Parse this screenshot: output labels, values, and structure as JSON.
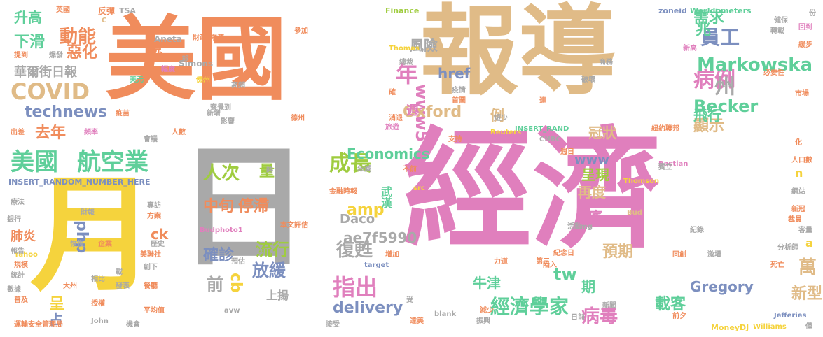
{
  "colors": {
    "orange": "#f08c5c",
    "tan": "#e0bb87",
    "pink": "#e07fbd",
    "yellow": "#f5d33d",
    "gray": "#a9a9a9",
    "blue": "#7c8fbf",
    "green": "#5fcf9a",
    "lime": "#9fcc3f",
    "background": "#ffffff"
  },
  "words": [
    {
      "text": "美國",
      "color": "orange",
      "weight": 100
    },
    {
      "text": "報導",
      "color": "tan",
      "weight": 95
    },
    {
      "text": "經濟",
      "color": "pink",
      "weight": 90
    },
    {
      "text": "月",
      "color": "yellow",
      "weight": 80
    },
    {
      "text": "日",
      "color": "gray",
      "weight": 80
    },
    {
      "text": "動能",
      "color": "orange",
      "weight": 20
    },
    {
      "text": "COVID",
      "color": "tan",
      "weight": 20
    },
    {
      "text": "technews",
      "color": "blue",
      "weight": 15
    },
    {
      "text": "美國",
      "color": "green",
      "weight": 18
    },
    {
      "text": "航空業",
      "color": "green",
      "weight": 18
    },
    {
      "text": "人次",
      "color": "lime",
      "weight": 16
    },
    {
      "text": "量",
      "color": "lime",
      "weight": 12
    },
    {
      "text": "中旬",
      "color": "orange",
      "weight": 12
    },
    {
      "text": "停滯",
      "color": "orange",
      "weight": 12
    },
    {
      "text": "確診",
      "color": "blue",
      "weight": 12
    },
    {
      "text": "流行",
      "color": "lime",
      "weight": 12
    },
    {
      "text": "前",
      "color": "gray",
      "weight": 12
    },
    {
      "text": "放緩",
      "color": "blue",
      "weight": 12
    },
    {
      "text": "cb",
      "color": "yellow",
      "weight": 12
    },
    {
      "text": "成長",
      "color": "lime",
      "weight": 15
    },
    {
      "text": "指出",
      "color": "pink",
      "weight": 15
    },
    {
      "text": "復甦",
      "color": "gray",
      "weight": 12
    },
    {
      "text": "amp",
      "color": "yellow",
      "weight": 12
    },
    {
      "text": "delivery",
      "color": "blue",
      "weight": 14
    },
    {
      "text": "經濟學家",
      "color": "green",
      "weight": 14
    },
    {
      "text": "病例",
      "color": "pink",
      "weight": 16
    },
    {
      "text": "員工",
      "color": "blue",
      "weight": 15
    },
    {
      "text": "需求",
      "color": "green",
      "weight": 14
    },
    {
      "text": "Markowska",
      "color": "green",
      "weight": 14
    },
    {
      "text": "Becker",
      "color": "green",
      "weight": 14
    },
    {
      "text": "病毒",
      "color": "pink",
      "weight": 14
    },
    {
      "text": "載客",
      "color": "green",
      "weight": 14
    },
    {
      "text": "年",
      "color": "pink",
      "weight": 14
    },
    {
      "text": "www5",
      "color": "pink",
      "weight": 14
    },
    {
      "text": "Oxford",
      "color": "tan",
      "weight": 12
    },
    {
      "text": "Economics",
      "color": "green",
      "weight": 12
    },
    {
      "text": "Gregory",
      "color": "blue",
      "weight": 12
    },
    {
      "text": "php",
      "color": "blue",
      "weight": 13
    },
    {
      "text": "去年",
      "color": "orange",
      "weight": 12
    },
    {
      "text": "下滑",
      "color": "green",
      "weight": 12
    },
    {
      "text": "惡化",
      "color": "orange",
      "weight": 12
    },
    {
      "text": "華爾街日報",
      "color": "gray",
      "weight": 10
    },
    {
      "text": "說",
      "color": "orange",
      "weight": 12
    },
    {
      "text": "顯示",
      "color": "tan",
      "weight": 12
    },
    {
      "text": "飛行",
      "color": "green",
      "weight": 12
    },
    {
      "text": "州",
      "color": "gray",
      "weight": 14
    },
    {
      "text": "萬",
      "color": "tan",
      "weight": 12
    },
    {
      "text": "新型",
      "color": "tan",
      "weight": 11
    },
    {
      "text": "tw",
      "color": "green",
      "weight": 12
    },
    {
      "text": "期",
      "color": "green",
      "weight": 12
    },
    {
      "text": "預期",
      "color": "tan",
      "weight": 11
    },
    {
      "text": "牛津",
      "color": "green",
      "weight": 10
    },
    {
      "text": "ae7f5990",
      "color": "gray",
      "weight": 10
    },
    {
      "text": "Daco",
      "color": "gray",
      "weight": 9
    },
    {
      "text": "武漢",
      "color": "green",
      "weight": 10
    },
    {
      "text": "風險",
      "color": "gray",
      "weight": 10
    },
    {
      "text": "href",
      "color": "blue",
      "weight": 10
    },
    {
      "text": "www",
      "color": "blue",
      "weight": 10
    },
    {
      "text": "例",
      "color": "tan",
      "weight": 10
    },
    {
      "text": "再度",
      "color": "tan",
      "weight": 10
    },
    {
      "text": "呈現",
      "color": "lime",
      "weight": 10
    },
    {
      "text": "冠狀",
      "color": "tan",
      "weight": 10
    },
    {
      "text": "兆",
      "color": "green",
      "weight": 10
    },
    {
      "text": "底",
      "color": "pink",
      "weight": 10
    },
    {
      "text": "週",
      "color": "pink",
      "weight": 9
    },
    {
      "text": "上揚",
      "color": "gray",
      "weight": 8
    },
    {
      "text": "升高",
      "color": "green",
      "weight": 9
    },
    {
      "text": "肺炎",
      "color": "orange",
      "weight": 8
    },
    {
      "text": "ck",
      "color": "orange",
      "weight": 8
    },
    {
      "text": "呈",
      "color": "yellow",
      "weight": 8
    },
    {
      "text": "占",
      "color": "blue",
      "weight": 8
    },
    {
      "text": "Simons",
      "color": "gray",
      "weight": 6
    },
    {
      "text": "INSERT_RANDOM_NUMBER_HERE",
      "color": "blue",
      "weight": 5
    },
    {
      "text": "INSERT_RAND",
      "color": "green",
      "weight": 5
    },
    {
      "text": "Worldometers",
      "color": "green",
      "weight": 5
    },
    {
      "text": "Finance",
      "color": "lime",
      "weight": 5
    },
    {
      "text": "zoneid",
      "color": "blue",
      "weight": 5
    },
    {
      "text": "TSA",
      "color": "gray",
      "weight": 5
    },
    {
      "text": "Aneta",
      "color": "gray",
      "weight": 5
    },
    {
      "text": "Thomas",
      "color": "yellow",
      "weight": 5
    },
    {
      "text": "Reuters",
      "color": "yellow",
      "weight": 5
    },
    {
      "text": "CNBC",
      "color": "gray",
      "weight": 5
    },
    {
      "text": "Bastian",
      "color": "pink",
      "weight": 5
    },
    {
      "text": "Thomson",
      "color": "yellow",
      "weight": 5
    },
    {
      "text": "Bud",
      "color": "tan",
      "weight": 5
    },
    {
      "text": "img",
      "color": "gray",
      "weight": 5
    },
    {
      "text": "Yahoo",
      "color": "yellow",
      "weight": 5
    },
    {
      "text": "John",
      "color": "gray",
      "weight": 5
    },
    {
      "text": "Jefferies",
      "color": "blue",
      "weight": 5
    },
    {
      "text": "Williams",
      "color": "yellow",
      "weight": 5
    },
    {
      "text": "MoneyDJ",
      "color": "yellow",
      "weight": 5
    },
    {
      "text": "Budphoto1",
      "color": "pink",
      "weight": 5
    },
    {
      "text": "target",
      "color": "blue",
      "weight": 5
    },
    {
      "text": "blank",
      "color": "gray",
      "weight": 5
    },
    {
      "text": "avw",
      "color": "gray",
      "weight": 5
    },
    {
      "text": "src",
      "color": "yellow",
      "weight": 5
    },
    {
      "text": "a",
      "color": "yellow",
      "weight": 7
    },
    {
      "text": "n",
      "color": "yellow",
      "weight": 7
    },
    {
      "text": "C",
      "color": "tan",
      "weight": 5
    },
    {
      "text": "英國",
      "color": "orange",
      "weight": 5
    },
    {
      "text": "反彈",
      "color": "orange",
      "weight": 5
    },
    {
      "text": "財政",
      "color": "orange",
      "weight": 5
    },
    {
      "text": "來源",
      "color": "orange",
      "weight": 5
    },
    {
      "text": "參加",
      "color": "orange",
      "weight": 5
    },
    {
      "text": "健保",
      "color": "gray",
      "weight": 5
    },
    {
      "text": "份",
      "color": "gray",
      "weight": 5
    },
    {
      "text": "回到",
      "color": "pink",
      "weight": 5
    },
    {
      "text": "提到",
      "color": "orange",
      "weight": 5
    },
    {
      "text": "爆發",
      "color": "gray",
      "weight": 5
    },
    {
      "text": "診",
      "color": "gray",
      "weight": 5
    },
    {
      "text": "幅度",
      "color": "pink",
      "weight": 5
    },
    {
      "text": "總裁",
      "color": "gray",
      "weight": 5
    },
    {
      "text": "商務",
      "color": "gray",
      "weight": 5
    },
    {
      "text": "轉載",
      "color": "gray",
      "weight": 5
    },
    {
      "text": "必要性",
      "color": "orange",
      "weight": 5
    },
    {
      "text": "美元",
      "color": "green",
      "weight": 5
    },
    {
      "text": "佛州",
      "color": "yellow",
      "weight": 5
    },
    {
      "text": "高頻",
      "color": "gray",
      "weight": 5
    },
    {
      "text": "疫情",
      "color": "gray",
      "weight": 5
    },
    {
      "text": "破壞",
      "color": "gray",
      "weight": 5
    },
    {
      "text": "市場",
      "color": "orange",
      "weight": 5
    },
    {
      "text": "疫苗",
      "color": "orange",
      "weight": 5
    },
    {
      "text": "新增",
      "color": "gray",
      "weight": 5
    },
    {
      "text": "察覺到",
      "color": "gray",
      "weight": 5
    },
    {
      "text": "影響",
      "color": "gray",
      "weight": 5
    },
    {
      "text": "德州",
      "color": "orange",
      "weight": 5
    },
    {
      "text": "消退",
      "color": "orange",
      "weight": 5
    },
    {
      "text": "短少",
      "color": "gray",
      "weight": 5
    },
    {
      "text": "出差",
      "color": "orange",
      "weight": 5
    },
    {
      "text": "頻率",
      "color": "pink",
      "weight": 5
    },
    {
      "text": "人數",
      "color": "orange",
      "weight": 5
    },
    {
      "text": "會議",
      "color": "gray",
      "weight": 5
    },
    {
      "text": "旅遊",
      "color": "pink",
      "weight": 5
    },
    {
      "text": "支持",
      "color": "orange",
      "weight": 5
    },
    {
      "text": "紐約聯邦",
      "color": "orange",
      "weight": 5
    },
    {
      "text": "獨立",
      "color": "gray",
      "weight": 5
    },
    {
      "text": "人口數",
      "color": "orange",
      "weight": 5
    },
    {
      "text": "網站",
      "color": "gray",
      "weight": 5
    },
    {
      "text": "年減",
      "color": "gray",
      "weight": 5
    },
    {
      "text": "金融時報",
      "color": "orange",
      "weight": 5
    },
    {
      "text": "療法",
      "color": "gray",
      "weight": 5
    },
    {
      "text": "財報",
      "color": "gray",
      "weight": 5
    },
    {
      "text": "專訪",
      "color": "gray",
      "weight": 5
    },
    {
      "text": "方案",
      "color": "orange",
      "weight": 5
    },
    {
      "text": "時",
      "color": "gray",
      "weight": 5
    },
    {
      "text": "本文",
      "color": "orange",
      "weight": 5
    },
    {
      "text": "評估",
      "color": "orange",
      "weight": 5
    },
    {
      "text": "活動",
      "color": "gray",
      "weight": 5
    },
    {
      "text": "紀錄",
      "color": "gray",
      "weight": 5
    },
    {
      "text": "新冠",
      "color": "orange",
      "weight": 5
    },
    {
      "text": "裁員",
      "color": "orange",
      "weight": 5
    },
    {
      "text": "客量",
      "color": "gray",
      "weight": 5
    },
    {
      "text": "分析師",
      "color": "gray",
      "weight": 5
    },
    {
      "text": "銀行",
      "color": "gray",
      "weight": 5
    },
    {
      "text": "恢復",
      "color": "gray",
      "weight": 5
    },
    {
      "text": "企業",
      "color": "orange",
      "weight": 5
    },
    {
      "text": "歷史",
      "color": "gray",
      "weight": 5
    },
    {
      "text": "低",
      "color": "gray",
      "weight": 5
    },
    {
      "text": "增加",
      "color": "orange",
      "weight": 5
    },
    {
      "text": "預估",
      "color": "gray",
      "weight": 5
    },
    {
      "text": "紀念日",
      "color": "orange",
      "weight": 5
    },
    {
      "text": "陷入",
      "color": "orange",
      "weight": 5
    },
    {
      "text": "同創",
      "color": "orange",
      "weight": 5
    },
    {
      "text": "激增",
      "color": "gray",
      "weight": 5
    },
    {
      "text": "死亡",
      "color": "orange",
      "weight": 5
    },
    {
      "text": "報告",
      "color": "gray",
      "weight": 5
    },
    {
      "text": "美聯社",
      "color": "orange",
      "weight": 5
    },
    {
      "text": "創下",
      "color": "gray",
      "weight": 5
    },
    {
      "text": "規模",
      "color": "orange",
      "weight": 5
    },
    {
      "text": "相比",
      "color": "gray",
      "weight": 5
    },
    {
      "text": "統計",
      "color": "gray",
      "weight": 5
    },
    {
      "text": "發表",
      "color": "gray",
      "weight": 5
    },
    {
      "text": "大州",
      "color": "orange",
      "weight": 5
    },
    {
      "text": "數據",
      "color": "gray",
      "weight": 5
    },
    {
      "text": "餐廳",
      "color": "orange",
      "weight": 5
    },
    {
      "text": "普及",
      "color": "orange",
      "weight": 5
    },
    {
      "text": "授權",
      "color": "orange",
      "weight": 5
    },
    {
      "text": "平均值",
      "color": "orange",
      "weight": 5
    },
    {
      "text": "運輸安全管理局",
      "color": "orange",
      "weight": 5
    },
    {
      "text": "機會",
      "color": "gray",
      "weight": 5
    },
    {
      "text": "接受",
      "color": "gray",
      "weight": 5
    },
    {
      "text": "減少",
      "color": "orange",
      "weight": 5
    },
    {
      "text": "達美",
      "color": "orange",
      "weight": 5
    },
    {
      "text": "振興",
      "color": "gray",
      "weight": 5
    },
    {
      "text": "前夕",
      "color": "orange",
      "weight": 5
    },
    {
      "text": "受",
      "color": "gray",
      "weight": 5
    },
    {
      "text": "僅",
      "color": "gray",
      "weight": 5
    },
    {
      "text": "日前",
      "color": "gray",
      "weight": 5
    },
    {
      "text": "新聞",
      "color": "gray",
      "weight": 5
    },
    {
      "text": "力道",
      "color": "orange",
      "weight": 5
    },
    {
      "text": "第三",
      "color": "orange",
      "weight": 5
    },
    {
      "text": "緩步",
      "color": "orange",
      "weight": 5
    },
    {
      "text": "新高",
      "color": "pink",
      "weight": 5
    },
    {
      "text": "首圖",
      "color": "orange",
      "weight": 5
    },
    {
      "text": "達",
      "color": "orange",
      "weight": 5
    },
    {
      "text": "週日",
      "color": "orange",
      "weight": 5
    },
    {
      "text": "確",
      "color": "orange",
      "weight": 5
    },
    {
      "text": "不前",
      "color": "orange",
      "weight": 5
    },
    {
      "text": "化",
      "color": "orange",
      "weight": 5
    },
    {
      "text": "載",
      "color": "gray",
      "weight": 5
    }
  ]
}
